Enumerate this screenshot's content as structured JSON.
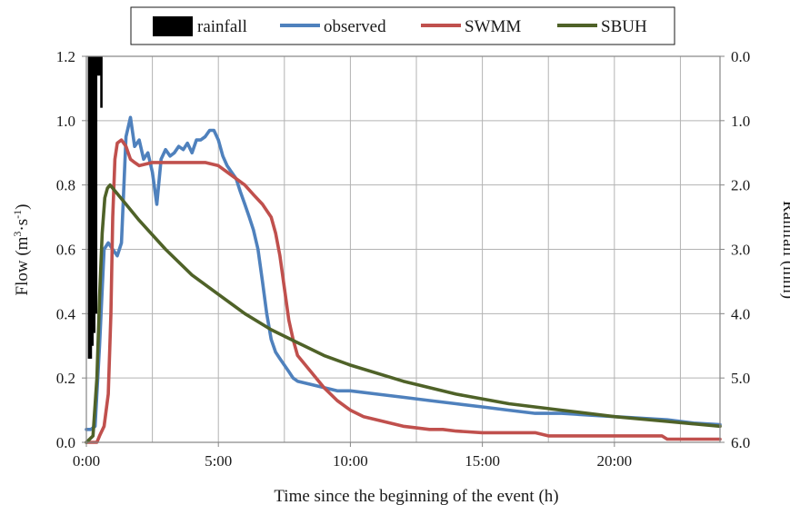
{
  "chart_data": {
    "type": "line",
    "xlabel": "Time since the beginning of the event (h)",
    "ylabel": "Flow (m³·s⁻¹)",
    "ylabel_parts": {
      "base": "Flow (m",
      "sup1": "3",
      "mid": "·s",
      "sup2": "-1",
      "end": ")"
    },
    "y2label": "Rainfall (mm)",
    "xlim": [
      0,
      24
    ],
    "ylim": [
      0,
      1.2
    ],
    "y2lim": [
      0,
      6
    ],
    "y2_inverted": true,
    "x_ticks": [
      {
        "v": 0,
        "label": "0:00"
      },
      {
        "v": 5,
        "label": "5:00"
      },
      {
        "v": 10,
        "label": "10:00"
      },
      {
        "v": 15,
        "label": "15:00"
      },
      {
        "v": 20,
        "label": "20:00"
      }
    ],
    "y_ticks": [
      {
        "v": 0,
        "label": "0.0"
      },
      {
        "v": 0.2,
        "label": "0.2"
      },
      {
        "v": 0.4,
        "label": "0.4"
      },
      {
        "v": 0.6,
        "label": "0.6"
      },
      {
        "v": 0.8,
        "label": "0.8"
      },
      {
        "v": 1.0,
        "label": "1.0"
      },
      {
        "v": 1.2,
        "label": "1.2"
      }
    ],
    "y2_ticks": [
      {
        "v": 0,
        "label": "0.0"
      },
      {
        "v": 1,
        "label": "1.0"
      },
      {
        "v": 2,
        "label": "2.0"
      },
      {
        "v": 3,
        "label": "3.0"
      },
      {
        "v": 4,
        "label": "4.0"
      },
      {
        "v": 5,
        "label": "5.0"
      },
      {
        "v": 6,
        "label": "6.0"
      }
    ],
    "grid": true,
    "legend_position": "top",
    "rainfall": {
      "name": "rainfall",
      "color": "#000000",
      "x": [
        0.1,
        0.17,
        0.23,
        0.3,
        0.37,
        0.43,
        0.5,
        0.57
      ],
      "values": [
        4.7,
        4.7,
        4.5,
        4.3,
        4.0,
        0.3,
        0.3,
        0.8
      ]
    },
    "series": [
      {
        "name": "observed",
        "color": "#4f81bd",
        "x": [
          0,
          0.17,
          0.33,
          0.5,
          0.67,
          0.83,
          1.0,
          1.17,
          1.33,
          1.5,
          1.67,
          1.83,
          2.0,
          2.17,
          2.33,
          2.5,
          2.67,
          2.83,
          3.0,
          3.17,
          3.33,
          3.5,
          3.67,
          3.83,
          4.0,
          4.17,
          4.33,
          4.5,
          4.67,
          4.83,
          5.0,
          5.17,
          5.33,
          5.5,
          5.67,
          5.83,
          6.0,
          6.17,
          6.33,
          6.5,
          6.67,
          6.83,
          7.0,
          7.17,
          7.33,
          7.5,
          7.67,
          7.83,
          8.0,
          8.5,
          9.0,
          9.5,
          10.0,
          11.0,
          12.0,
          13.0,
          14.0,
          15.0,
          16.0,
          17.0,
          18.0,
          19.0,
          20.0,
          21.0,
          22.0,
          23.0,
          24.0
        ],
        "values": [
          0.04,
          0.04,
          0.05,
          0.3,
          0.6,
          0.62,
          0.6,
          0.58,
          0.62,
          0.95,
          1.01,
          0.92,
          0.94,
          0.88,
          0.9,
          0.84,
          0.74,
          0.88,
          0.91,
          0.89,
          0.9,
          0.92,
          0.91,
          0.93,
          0.9,
          0.94,
          0.94,
          0.95,
          0.97,
          0.97,
          0.94,
          0.89,
          0.86,
          0.84,
          0.82,
          0.78,
          0.74,
          0.7,
          0.66,
          0.6,
          0.5,
          0.4,
          0.32,
          0.28,
          0.26,
          0.24,
          0.22,
          0.2,
          0.19,
          0.18,
          0.17,
          0.16,
          0.16,
          0.15,
          0.14,
          0.13,
          0.12,
          0.11,
          0.1,
          0.09,
          0.09,
          0.085,
          0.08,
          0.075,
          0.07,
          0.06,
          0.055
        ]
      },
      {
        "name": "SWMM",
        "color": "#c0504d",
        "x": [
          0,
          0.4,
          0.5,
          0.67,
          0.83,
          0.93,
          1.0,
          1.08,
          1.17,
          1.33,
          1.5,
          1.67,
          1.83,
          2.0,
          2.5,
          3.0,
          3.5,
          4.0,
          4.5,
          5.0,
          5.5,
          6.0,
          6.33,
          6.67,
          7.0,
          7.17,
          7.33,
          7.5,
          7.67,
          7.83,
          8.0,
          8.5,
          9.0,
          9.5,
          10.0,
          10.5,
          11.0,
          12.0,
          13.0,
          13.5,
          14.0,
          15.0,
          17.0,
          17.5,
          21.8,
          22.0,
          24.0
        ],
        "values": [
          0.0,
          0.0,
          0.02,
          0.05,
          0.15,
          0.4,
          0.7,
          0.88,
          0.93,
          0.94,
          0.92,
          0.88,
          0.87,
          0.86,
          0.87,
          0.87,
          0.87,
          0.87,
          0.87,
          0.86,
          0.83,
          0.8,
          0.77,
          0.74,
          0.7,
          0.65,
          0.58,
          0.48,
          0.38,
          0.32,
          0.27,
          0.22,
          0.17,
          0.13,
          0.1,
          0.08,
          0.07,
          0.05,
          0.04,
          0.04,
          0.035,
          0.03,
          0.03,
          0.02,
          0.02,
          0.01,
          0.01
        ]
      },
      {
        "name": "SBUH",
        "color": "#4f6228",
        "x": [
          0,
          0.25,
          0.4,
          0.5,
          0.6,
          0.7,
          0.8,
          0.9,
          1.0,
          1.5,
          2.0,
          3.0,
          4.0,
          5.0,
          6.0,
          7.0,
          8.0,
          9.0,
          10.0,
          12.0,
          14.0,
          16.0,
          18.0,
          20.0,
          22.0,
          24.0
        ],
        "values": [
          0.0,
          0.02,
          0.2,
          0.45,
          0.65,
          0.76,
          0.79,
          0.8,
          0.79,
          0.74,
          0.69,
          0.6,
          0.52,
          0.46,
          0.4,
          0.35,
          0.31,
          0.27,
          0.24,
          0.19,
          0.15,
          0.12,
          0.1,
          0.08,
          0.065,
          0.05
        ]
      }
    ]
  }
}
